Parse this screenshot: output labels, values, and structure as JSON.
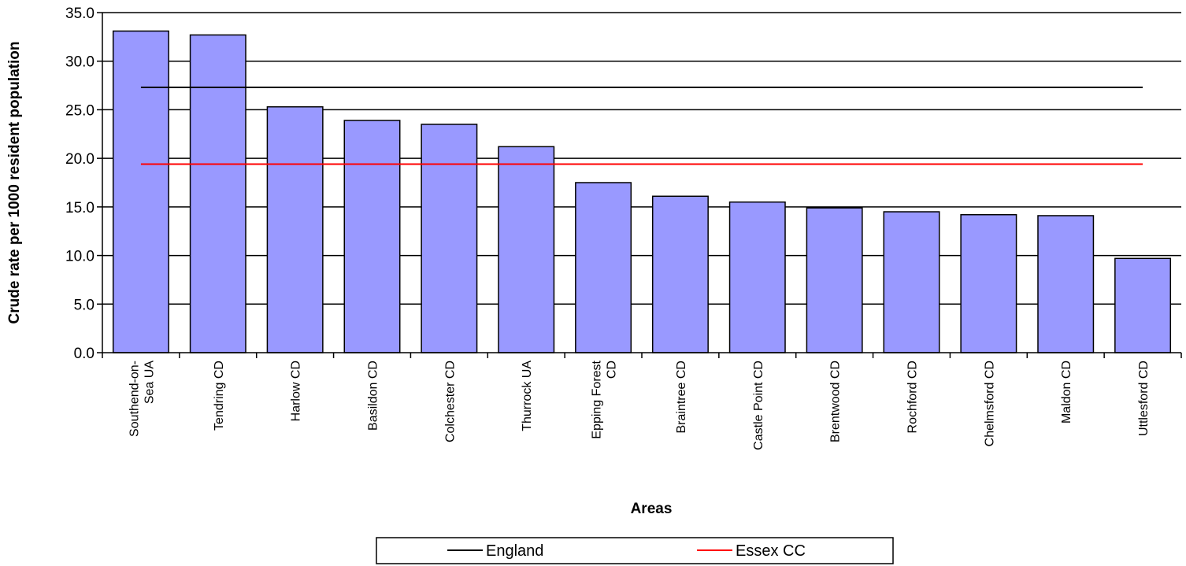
{
  "chart_data": {
    "type": "bar",
    "categories": [
      "Southend-on-Sea UA",
      "Tendring CD",
      "Harlow CD",
      "Basildon CD",
      "Colchester CD",
      "Thurrock UA",
      "Epping Forest CD",
      "Braintree CD",
      "Castle Point CD",
      "Brentwood CD",
      "Rochford CD",
      "Chelmsford CD",
      "Maldon CD",
      "Uttlesford CD"
    ],
    "category_lines": [
      [
        "Southend-on-",
        "Sea UA"
      ],
      [
        "Tendring CD"
      ],
      [
        "Harlow CD"
      ],
      [
        "Basildon CD"
      ],
      [
        "Colchester CD"
      ],
      [
        "Thurrock UA"
      ],
      [
        "Epping Forest",
        "CD"
      ],
      [
        "Braintree CD"
      ],
      [
        "Castle Point CD"
      ],
      [
        "Brentwood CD"
      ],
      [
        "Rochford CD"
      ],
      [
        "Chelmsford CD"
      ],
      [
        "Maldon CD"
      ],
      [
        "Uttlesford CD"
      ]
    ],
    "values": [
      33.1,
      32.7,
      25.3,
      23.9,
      23.5,
      21.2,
      17.5,
      16.1,
      15.5,
      14.9,
      14.5,
      14.2,
      14.1,
      9.7
    ],
    "bar_color": "#9999ff",
    "xlabel": "Areas",
    "ylabel": "Crude rate per 1000 resident population",
    "ylim": [
      0,
      35
    ],
    "yticks": [
      "0.0",
      "5.0",
      "10.0",
      "15.0",
      "20.0",
      "25.0",
      "30.0",
      "35.0"
    ],
    "grid": true,
    "reference_lines": [
      {
        "name": "England",
        "value": 27.3,
        "color": "#000000"
      },
      {
        "name": "Essex CC",
        "value": 19.4,
        "color": "#ff0000"
      }
    ],
    "legend_position": "bottom-center"
  }
}
